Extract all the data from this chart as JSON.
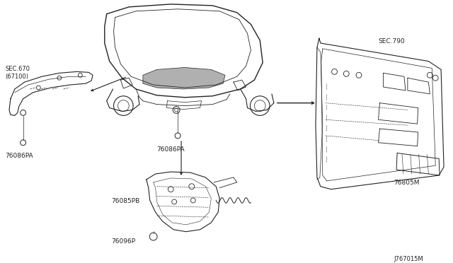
{
  "bg_color": "#ffffff",
  "diagram_id": "J767015M",
  "line_color": "#222222",
  "text_color": "#222222",
  "font_size": 6.5,
  "labels": {
    "sec670": "SEC.670\n(67100)",
    "sec790": "SEC.790",
    "p76086pa_center": "76086PA",
    "p76086pa_left": "76086PA",
    "p76085pb": "76085PB",
    "p76096p": "76096P",
    "p76805m": "76805M"
  }
}
